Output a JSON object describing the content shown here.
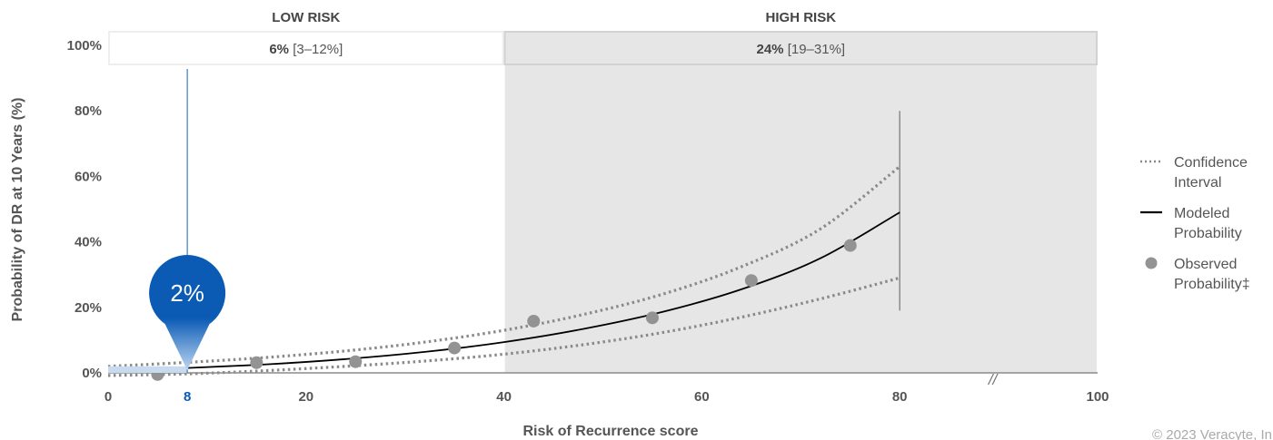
{
  "chart_data": {
    "type": "line",
    "xlabel": "Risk of Recurrence score",
    "ylabel": "Probability of DR at 10 Years (%)",
    "xlim": [
      0,
      100
    ],
    "ylim": [
      0,
      100
    ],
    "x_ticks": [
      "0",
      "20",
      "40",
      "60",
      "80",
      "100"
    ],
    "highlight_tick": {
      "x": 8,
      "label": "8"
    },
    "y_ticks": [
      {
        "value": 0,
        "label": "0%"
      },
      {
        "value": 20,
        "label": "20%"
      },
      {
        "value": 40,
        "label": "40%"
      },
      {
        "value": 60,
        "label": "60%"
      },
      {
        "value": 80,
        "label": "80%"
      },
      {
        "value": 100,
        "label": "100%"
      }
    ],
    "axis_break": "//",
    "risk_groups": [
      {
        "header": "LOW RISK",
        "value_bold": "6%",
        "value_ci": " [3–12%]",
        "x_start": 0,
        "x_end": 40,
        "color": "#ffffff"
      },
      {
        "header": "HIGH RISK",
        "value_bold": "24%",
        "value_ci": " [19–31%]",
        "x_start": 40,
        "x_end": 100,
        "color": "#e6e6e6"
      }
    ],
    "series": [
      {
        "name": "Modeled Probability",
        "style": "solid",
        "color": "#000000",
        "x": [
          0,
          8,
          16,
          24,
          32,
          40,
          48,
          56,
          64,
          72,
          80
        ],
        "y": [
          0.8,
          1.5,
          2.6,
          4.2,
          6.4,
          9.4,
          13.4,
          18.6,
          25.5,
          35.0,
          49.0
        ]
      },
      {
        "name": "Confidence Interval",
        "style": "dotted",
        "color": "#8a8a8a",
        "x": [
          0,
          8,
          16,
          24,
          32,
          40,
          48,
          56,
          64,
          72,
          80
        ],
        "y": [
          2.0,
          3.2,
          4.7,
          6.7,
          9.4,
          13.0,
          17.8,
          24.0,
          32.4,
          44.0,
          63.0
        ]
      },
      {
        "name": "Confidence Interval lower",
        "style": "dotted",
        "color": "#8a8a8a",
        "x": [
          0,
          8,
          16,
          24,
          32,
          40,
          48,
          56,
          64,
          72,
          80
        ],
        "y": [
          -0.8,
          -0.3,
          0.7,
          2.0,
          3.6,
          5.7,
          8.6,
          12.3,
          17.0,
          22.6,
          29.0
        ]
      },
      {
        "name": "Observed Probability‡",
        "style": "points",
        "color": "#939393",
        "x": [
          5,
          15,
          25,
          35,
          43,
          55,
          65,
          75
        ],
        "y": [
          -0.5,
          3.1,
          3.4,
          7.6,
          15.8,
          16.8,
          28.2,
          38.9
        ]
      }
    ],
    "vertical_marker_x": 80,
    "vertical_marker_range": [
      19,
      80
    ],
    "patient_marker": {
      "x": 8,
      "value": 2,
      "label": "2%",
      "color": "#0b5bb5"
    },
    "legend": {
      "placement": "right",
      "items": [
        {
          "type": "dotted",
          "line1": "Confidence",
          "line2": "Interval"
        },
        {
          "type": "solid",
          "line1": "Modeled",
          "line2": "Probability"
        },
        {
          "type": "dot",
          "line1": "Observed",
          "line2": "Probability‡"
        }
      ]
    }
  },
  "copyright": "© 2023 Veracyte, In"
}
